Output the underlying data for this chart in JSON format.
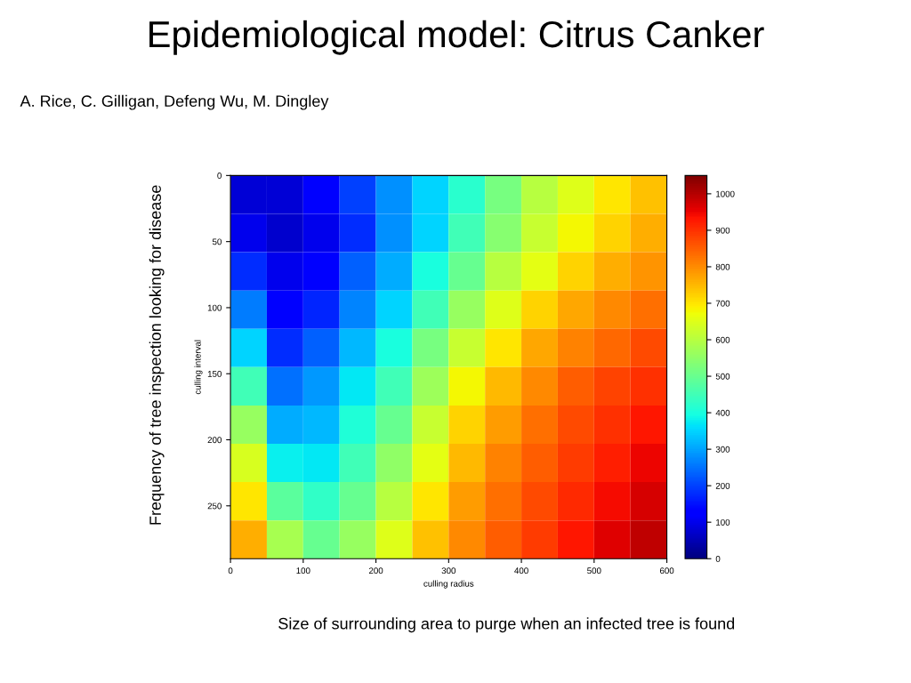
{
  "chart_data": {
    "type": "heatmap",
    "title": "Epidemiological model: Citrus Canker",
    "subtitle": "A. Rice, C. Gilligan, Defeng Wu, M. Dingley",
    "xlabel": "culling radius",
    "ylabel": "culling interval",
    "annotations": [
      "Frequency of tree inspection looking for disease",
      "Size of surrounding area to purge when an infected tree is found"
    ],
    "x": [
      25,
      75,
      125,
      175,
      225,
      275,
      325,
      375,
      425,
      475,
      525,
      575
    ],
    "y": [
      14.5,
      43.5,
      72.5,
      101.5,
      130.5,
      159.5,
      188.5,
      217.5,
      246.5,
      275.5
    ],
    "xlim": [
      0,
      600
    ],
    "xticks": [
      0,
      100,
      200,
      300,
      400,
      500,
      600
    ],
    "ylim": [
      290,
      0
    ],
    "yticks": [
      0,
      50,
      100,
      150,
      200,
      250
    ],
    "clim": [
      0,
      1050
    ],
    "cticks": [
      0,
      100,
      200,
      300,
      400,
      500,
      600,
      700,
      800,
      900,
      1000
    ],
    "cells": [
      [
        80,
        80,
        120,
        200,
        280,
        350,
        420,
        520,
        600,
        650,
        700,
        740
      ],
      [
        100,
        70,
        100,
        180,
        280,
        350,
        450,
        540,
        620,
        680,
        720,
        760
      ],
      [
        180,
        100,
        130,
        230,
        310,
        400,
        500,
        600,
        660,
        720,
        760,
        790
      ],
      [
        260,
        130,
        170,
        270,
        350,
        450,
        560,
        650,
        720,
        770,
        800,
        830
      ],
      [
        350,
        180,
        230,
        320,
        400,
        520,
        620,
        700,
        770,
        810,
        840,
        870
      ],
      [
        450,
        250,
        290,
        370,
        450,
        570,
        680,
        750,
        800,
        850,
        880,
        900
      ],
      [
        560,
        310,
        320,
        410,
        500,
        620,
        720,
        780,
        830,
        870,
        900,
        930
      ],
      [
        640,
        380,
        370,
        450,
        550,
        660,
        750,
        810,
        850,
        890,
        920,
        950
      ],
      [
        700,
        480,
        430,
        500,
        600,
        700,
        780,
        830,
        870,
        910,
        940,
        970
      ],
      [
        760,
        580,
        500,
        560,
        650,
        740,
        800,
        850,
        890,
        930,
        960,
        990
      ]
    ]
  }
}
